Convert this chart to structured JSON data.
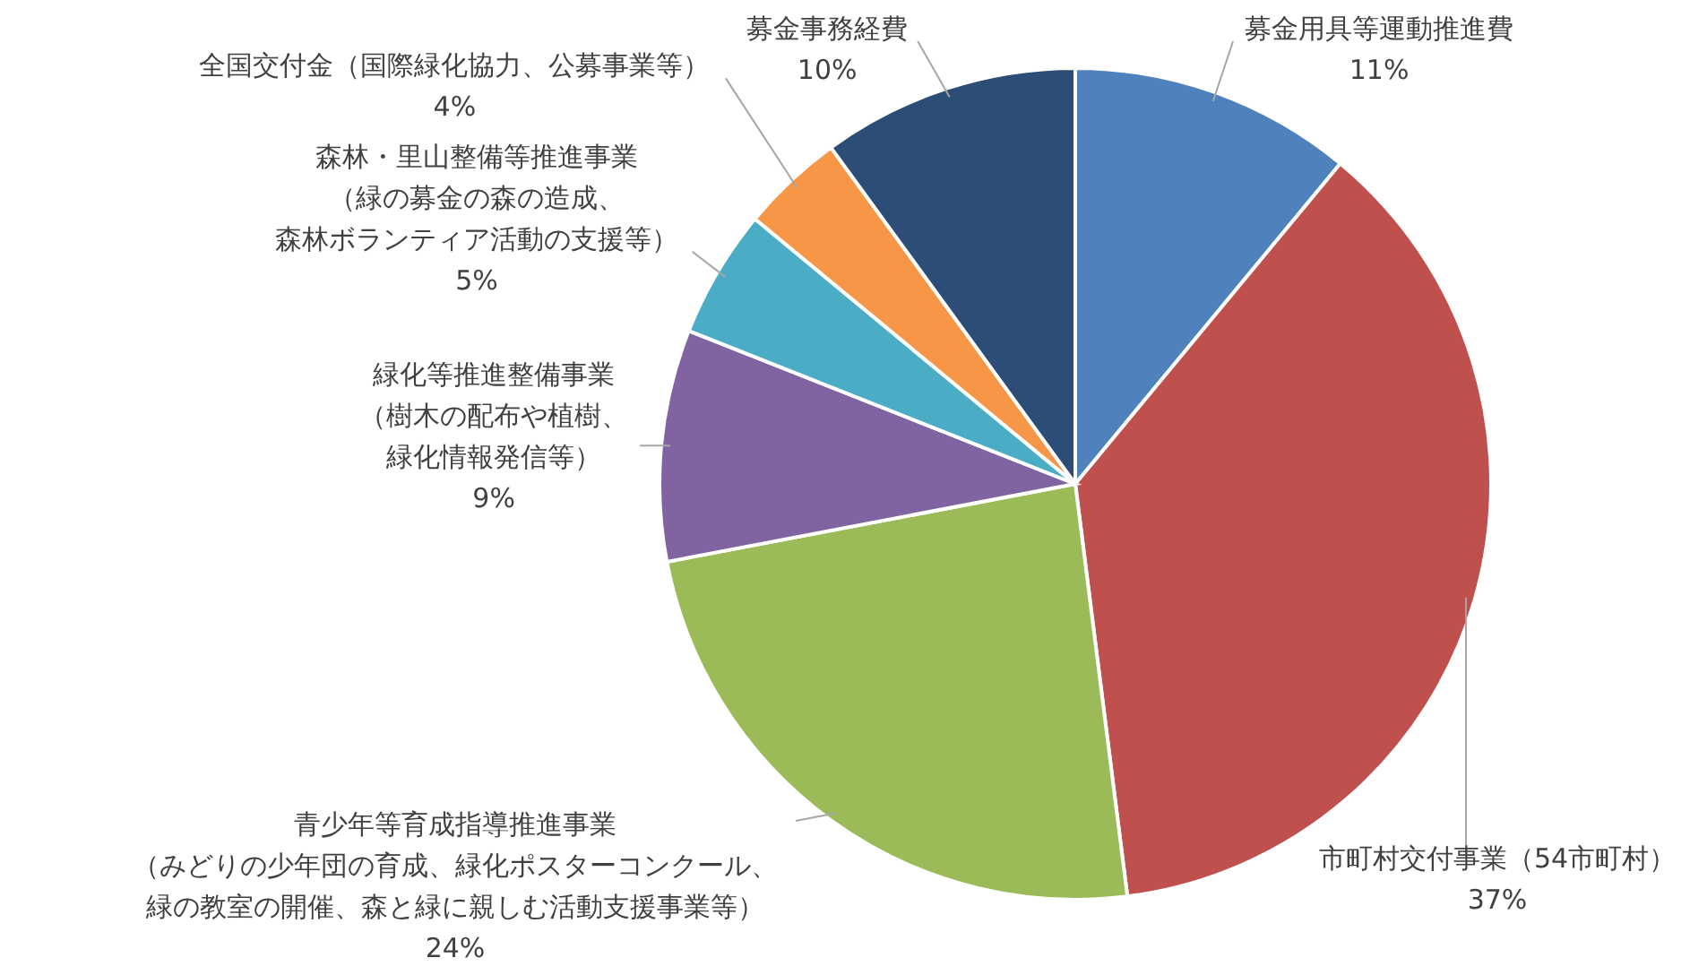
{
  "chart_data": {
    "type": "pie",
    "categories": [
      "募金用具等運動推進費",
      "市町村交付事業（54市町村）",
      "青少年等育成指導推進事業（みどりの少年団の育成、緑化ポスターコンクール、緑の教室の開催、森と緑に親しむ活動支援事業等）",
      "緑化等推進整備事業（樹木の配布や植樹、緑化情報発信等）",
      "森林・里山整備等推進事業（緑の募金の森の造成、森林ボランティア活動の支援等）",
      "全国交付金（国際緑化協力、公募事業等）",
      "募金事務経費"
    ],
    "values": [
      11,
      37,
      24,
      9,
      5,
      4,
      10
    ],
    "value_labels": [
      "11%",
      "37%",
      "24%",
      "9%",
      "5%",
      "4%",
      "10%"
    ],
    "colors": [
      "#4f81bd",
      "#c0504d",
      "#9bbb59",
      "#8064a2",
      "#4bacc6",
      "#f79646",
      "#2c4d75"
    ]
  }
}
